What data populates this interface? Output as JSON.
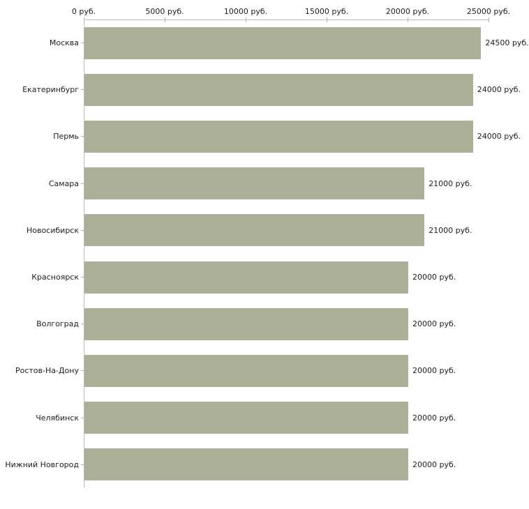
{
  "chart_data": {
    "type": "bar",
    "orientation": "horizontal",
    "title": "",
    "xlabel": "",
    "ylabel": "",
    "unit": "руб.",
    "categories": [
      "Москва",
      "Екатеринбург",
      "Пермь",
      "Самара",
      "Новосибирск",
      "Красноярск",
      "Волгоград",
      "Ростов-На-Дону",
      "Челябинск",
      "Нижний Новгород"
    ],
    "values": [
      24500,
      24000,
      24000,
      21000,
      21000,
      20000,
      20000,
      20000,
      20000,
      20000
    ],
    "value_labels": [
      "24500 руб.",
      "24000 руб.",
      "24000 руб.",
      "21000 руб.",
      "21000 руб.",
      "20000 руб.",
      "20000 руб.",
      "20000 руб.",
      "20000 руб.",
      "20000 руб."
    ],
    "xlim": [
      0,
      25000
    ],
    "x_ticks": [
      0,
      5000,
      10000,
      15000,
      20000,
      25000
    ],
    "x_tick_labels": [
      "0 руб.",
      "5000 руб.",
      "10000 руб.",
      "15000 руб.",
      "20000 руб.",
      "25000 руб."
    ],
    "grid": false,
    "legend_position": "none",
    "colors": {
      "bar": "#abb096",
      "axis_line": "#b9b9b9",
      "tick_mark": "#b5b78f",
      "text": "#1c1c1c",
      "background": "#ffffff"
    }
  }
}
